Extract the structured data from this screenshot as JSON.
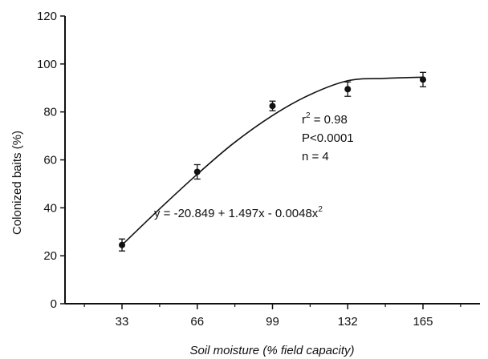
{
  "chart_data": {
    "type": "scatter",
    "title": "",
    "xlabel": "Soil moisture (% field capacity)",
    "ylabel": "Colonized baits (%)",
    "xlim": [
      8,
      190
    ],
    "ylim": [
      0,
      120
    ],
    "xticks": [
      33,
      66,
      99,
      132,
      165
    ],
    "yticks": [
      0,
      20,
      40,
      60,
      80,
      100,
      120
    ],
    "grid": false,
    "points": [
      {
        "x": 33,
        "y": 24.5,
        "err": 2.5
      },
      {
        "x": 66,
        "y": 55,
        "err": 3
      },
      {
        "x": 99,
        "y": 82.5,
        "err": 2
      },
      {
        "x": 132,
        "y": 89.5,
        "err": 3
      },
      {
        "x": 165,
        "y": 93.5,
        "err": 3
      }
    ],
    "fit_curve": [
      {
        "x": 33,
        "y": 24.5
      },
      {
        "x": 50,
        "y": 40
      },
      {
        "x": 66,
        "y": 54
      },
      {
        "x": 82,
        "y": 67
      },
      {
        "x": 99,
        "y": 78.5
      },
      {
        "x": 115,
        "y": 87
      },
      {
        "x": 132,
        "y": 93
      },
      {
        "x": 148,
        "y": 94
      },
      {
        "x": 165,
        "y": 94.5
      }
    ],
    "annotations": {
      "stats": {
        "r2_base": "r",
        "r2_sup": "2",
        "r2_value": " = 0.98",
        "p_value": "P<0.0001",
        "n": "n = 4"
      },
      "equation": {
        "text": "y = -20.849 + 1.497x - 0.0048x",
        "sup": "2"
      }
    }
  }
}
